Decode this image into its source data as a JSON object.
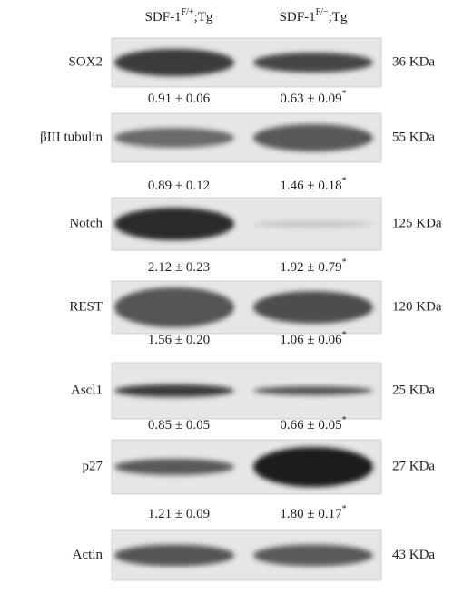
{
  "header": {
    "columns": [
      {
        "base": "SDF-1",
        "sup": "F/+",
        "suffix": ";Tg"
      },
      {
        "base": "SDF-1",
        "sup": "F/−",
        "suffix": ";Tg"
      }
    ]
  },
  "rows": [
    {
      "label": "SOX2",
      "size": "36 KDa",
      "quant": [
        "0.91 ± 0.06",
        "0.63 ± 0.09"
      ],
      "mark": "*"
    },
    {
      "label": "βIII tubulin",
      "size": "55 KDa",
      "quant": [
        "0.89 ± 0.12",
        "1.46 ± 0.18"
      ],
      "mark": "*"
    },
    {
      "label": "Notch",
      "size": "125 KDa",
      "quant": [
        "2.12 ± 0.23",
        "1.92 ± 0.79"
      ],
      "mark": "*"
    },
    {
      "label": "REST",
      "size": "120 KDa",
      "quant": [
        "1.56 ± 0.20",
        "1.06 ± 0.06"
      ],
      "mark": "*"
    },
    {
      "label": "Ascl1",
      "size": "25 KDa",
      "quant": [
        "0.85 ± 0.05",
        "0.66 ± 0.05"
      ],
      "mark": "*"
    },
    {
      "label": "p27",
      "size": "27 KDa",
      "quant": [
        "1.21 ± 0.09",
        "1.80 ± 0.17"
      ],
      "mark": "*"
    },
    {
      "label": "Actin",
      "size": "43 KDa"
    }
  ]
}
